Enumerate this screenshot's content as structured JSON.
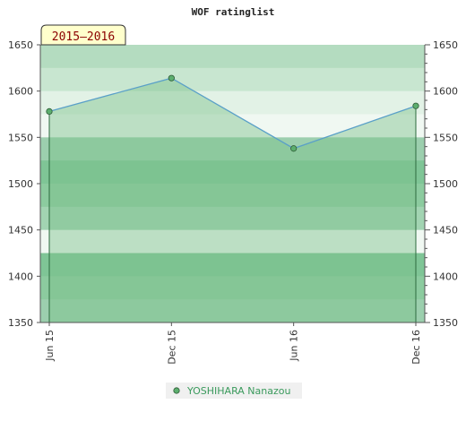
{
  "chart_data": {
    "type": "area",
    "title": "WOF ratinglist",
    "season_label": "2015–2016",
    "categories": [
      "Jun 15",
      "Dec 15",
      "Jun 16",
      "Dec 16"
    ],
    "series": [
      {
        "name": "YOSHIHARA Nanazou",
        "values": [
          1578,
          1614,
          1538,
          1584
        ]
      }
    ],
    "ylim": [
      1350,
      1650
    ],
    "yticks": [
      1350,
      1400,
      1450,
      1500,
      1550,
      1600,
      1650
    ],
    "xlabel": "",
    "ylabel": "",
    "grid": true,
    "legend_position": "bottom-center",
    "colors": {
      "line": "#5aa0c8",
      "fill": "#7cc08c",
      "marker": "#5cae6e",
      "band_dark": "#7cc494",
      "band_light": "#e8f5ec",
      "legend_text": "#3a9a5c",
      "season_bg": "#ffffcc",
      "season_text": "#8b0000"
    }
  }
}
